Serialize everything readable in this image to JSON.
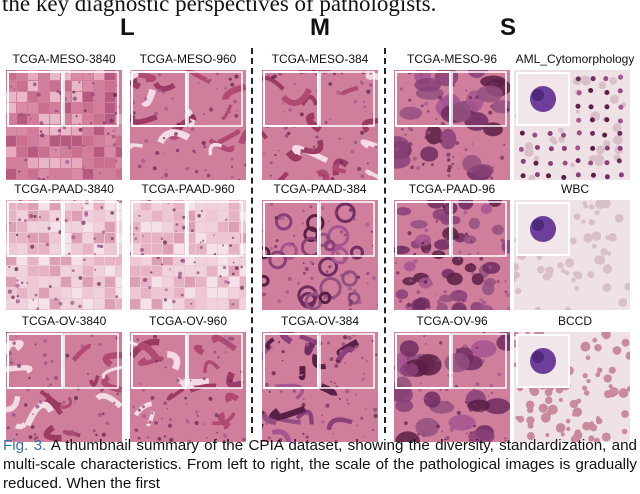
{
  "intro_text": "the key diagnostic perspectives of pathologists.",
  "groups": {
    "large": "L",
    "medium": "M",
    "small": "S"
  },
  "tiles": {
    "meso_3840": "TCGA-MESO-3840",
    "meso_960": "TCGA-MESO-960",
    "meso_384": "TCGA-MESO-384",
    "meso_96": "TCGA-MESO-96",
    "aml": "AML_Cytomorphology",
    "paad_3840": "TCGA-PAAD-3840",
    "paad_960": "TCGA-PAAD-960",
    "paad_384": "TCGA-PAAD-384",
    "paad_96": "TCGA-PAAD-96",
    "wbc": "WBC",
    "ov_3840": "TCGA-OV-3840",
    "ov_960": "TCGA-OV-960",
    "ov_384": "TCGA-OV-384",
    "ov_96": "TCGA-OV-96",
    "bccd": "BCCD"
  },
  "caption": {
    "label": "Fig. 3.",
    "text": " A thumbnail summary of the CPIA dataset, showing the diversity, standardization, and multi-scale characteristics. From left to right, the scale of the pathological images is gradually reduced. When the first"
  },
  "colors": {
    "tissue_pink": "#d98aa6",
    "tissue_purple": "#8a3f78",
    "tissue_dark": "#5a1f44",
    "blood_pale": "#ead8df",
    "figure_label_blue": "#3a6fb0"
  }
}
